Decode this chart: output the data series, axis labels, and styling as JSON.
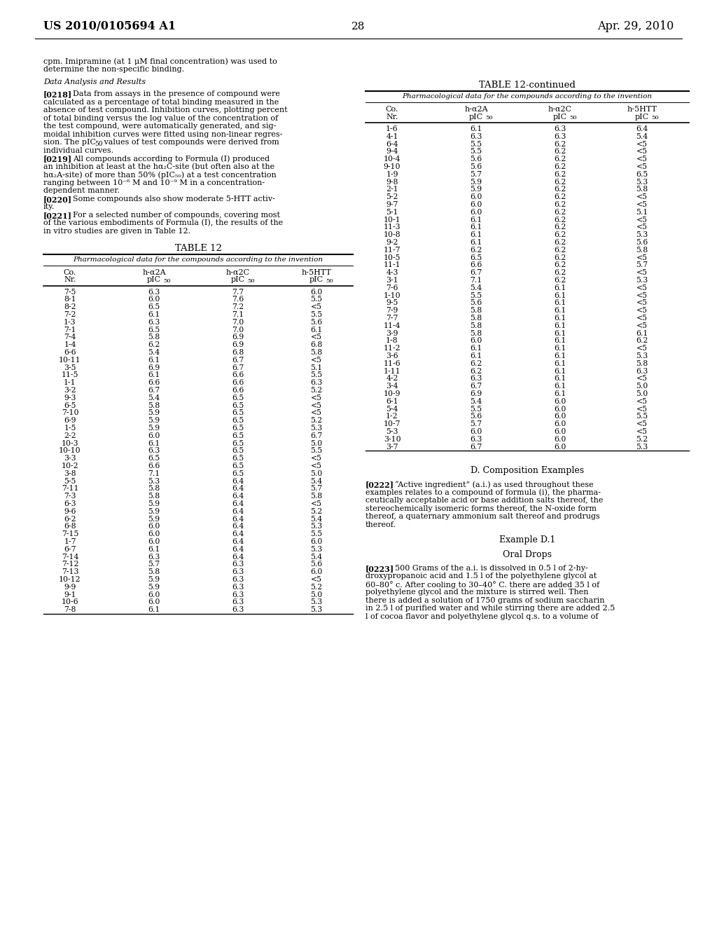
{
  "page_number": "28",
  "patent_left": "US 2010/0105694 A1",
  "patent_right": "Apr. 29, 2010",
  "table12_data": [
    [
      "7-5",
      "6.3",
      "7.7",
      "6.0"
    ],
    [
      "8-1",
      "6.0",
      "7.6",
      "5.5"
    ],
    [
      "8-2",
      "6.5",
      "7.2",
      "<5"
    ],
    [
      "7-2",
      "6.1",
      "7.1",
      "5.5"
    ],
    [
      "1-3",
      "6.3",
      "7.0",
      "5.6"
    ],
    [
      "7-1",
      "6.5",
      "7.0",
      "6.1"
    ],
    [
      "7-4",
      "5.8",
      "6.9",
      "<5"
    ],
    [
      "1-4",
      "6.2",
      "6.9",
      "6.8"
    ],
    [
      "6-6",
      "5.4",
      "6.8",
      "5.8"
    ],
    [
      "10-11",
      "6.1",
      "6.7",
      "<5"
    ],
    [
      "3-5",
      "6.9",
      "6.7",
      "5.1"
    ],
    [
      "11-5",
      "6.1",
      "6.6",
      "5.5"
    ],
    [
      "1-1",
      "6.6",
      "6.6",
      "6.3"
    ],
    [
      "3-2",
      "6.7",
      "6.6",
      "5.2"
    ],
    [
      "9-3",
      "5.4",
      "6.5",
      "<5"
    ],
    [
      "6-5",
      "5.8",
      "6.5",
      "<5"
    ],
    [
      "7-10",
      "5.9",
      "6.5",
      "<5"
    ],
    [
      "6-9",
      "5.9",
      "6.5",
      "5.2"
    ],
    [
      "1-5",
      "5.9",
      "6.5",
      "5.3"
    ],
    [
      "2-2",
      "6.0",
      "6.5",
      "6.7"
    ],
    [
      "10-3",
      "6.1",
      "6.5",
      "5.0"
    ],
    [
      "10-10",
      "6.3",
      "6.5",
      "5.5"
    ],
    [
      "3-3",
      "6.5",
      "6.5",
      "<5"
    ],
    [
      "10-2",
      "6.6",
      "6.5",
      "<5"
    ],
    [
      "3-8",
      "7.1",
      "6.5",
      "5.0"
    ],
    [
      "5-5",
      "5.3",
      "6.4",
      "5.4"
    ],
    [
      "7-11",
      "5.8",
      "6.4",
      "5.7"
    ],
    [
      "7-3",
      "5.8",
      "6.4",
      "5.8"
    ],
    [
      "6-3",
      "5.9",
      "6.4",
      "<5"
    ],
    [
      "9-6",
      "5.9",
      "6.4",
      "5.2"
    ],
    [
      "6-2",
      "5.9",
      "6.4",
      "5.4"
    ],
    [
      "6-8",
      "6.0",
      "6.4",
      "5.3"
    ],
    [
      "7-15",
      "6.0",
      "6.4",
      "5.5"
    ],
    [
      "1-7",
      "6.0",
      "6.4",
      "6.0"
    ],
    [
      "6-7",
      "6.1",
      "6.4",
      "5.3"
    ],
    [
      "7-14",
      "6.3",
      "6.4",
      "5.4"
    ],
    [
      "7-12",
      "5.7",
      "6.3",
      "5.6"
    ],
    [
      "7-13",
      "5.8",
      "6.3",
      "6.0"
    ],
    [
      "10-12",
      "5.9",
      "6.3",
      "<5"
    ],
    [
      "9-9",
      "5.9",
      "6.3",
      "5.2"
    ],
    [
      "9-1",
      "6.0",
      "6.3",
      "5.0"
    ],
    [
      "10-6",
      "6.0",
      "6.3",
      "5.3"
    ],
    [
      "7-8",
      "6.1",
      "6.3",
      "5.3"
    ]
  ],
  "table12cont_data": [
    [
      "1-6",
      "6.1",
      "6.3",
      "6.4"
    ],
    [
      "4-1",
      "6.3",
      "6.3",
      "5.4"
    ],
    [
      "6-4",
      "5.5",
      "6.2",
      "<5"
    ],
    [
      "9-4",
      "5.5",
      "6.2",
      "<5"
    ],
    [
      "10-4",
      "5.6",
      "6.2",
      "<5"
    ],
    [
      "9-10",
      "5.6",
      "6.2",
      "<5"
    ],
    [
      "1-9",
      "5.7",
      "6.2",
      "6.5"
    ],
    [
      "9-8",
      "5.9",
      "6.2",
      "5.3"
    ],
    [
      "2-1",
      "5.9",
      "6.2",
      "5.8"
    ],
    [
      "5-2",
      "6.0",
      "6.2",
      "<5"
    ],
    [
      "9-7",
      "6.0",
      "6.2",
      "<5"
    ],
    [
      "5-1",
      "6.0",
      "6.2",
      "5.1"
    ],
    [
      "10-1",
      "6.1",
      "6.2",
      "<5"
    ],
    [
      "11-3",
      "6.1",
      "6.2",
      "<5"
    ],
    [
      "10-8",
      "6.1",
      "6.2",
      "5.3"
    ],
    [
      "9-2",
      "6.1",
      "6.2",
      "5.6"
    ],
    [
      "11-7",
      "6.2",
      "6.2",
      "5.8"
    ],
    [
      "10-5",
      "6.5",
      "6.2",
      "<5"
    ],
    [
      "11-1",
      "6.6",
      "6.2",
      "5.7"
    ],
    [
      "4-3",
      "6.7",
      "6.2",
      "<5"
    ],
    [
      "3-1",
      "7.1",
      "6.2",
      "5.3"
    ],
    [
      "7-6",
      "5.4",
      "6.1",
      "<5"
    ],
    [
      "1-10",
      "5.5",
      "6.1",
      "<5"
    ],
    [
      "9-5",
      "5.6",
      "6.1",
      "<5"
    ],
    [
      "7-9",
      "5.8",
      "6.1",
      "<5"
    ],
    [
      "7-7",
      "5.8",
      "6.1",
      "<5"
    ],
    [
      "11-4",
      "5.8",
      "6.1",
      "<5"
    ],
    [
      "3-9",
      "5.8",
      "6.1",
      "6.1"
    ],
    [
      "1-8",
      "6.0",
      "6.1",
      "6.2"
    ],
    [
      "11-2",
      "6.1",
      "6.1",
      "<5"
    ],
    [
      "3-6",
      "6.1",
      "6.1",
      "5.3"
    ],
    [
      "11-6",
      "6.2",
      "6.1",
      "5.8"
    ],
    [
      "1-11",
      "6.2",
      "6.1",
      "6.3"
    ],
    [
      "4-2",
      "6.3",
      "6.1",
      "<5"
    ],
    [
      "3-4",
      "6.7",
      "6.1",
      "5.0"
    ],
    [
      "10-9",
      "6.9",
      "6.1",
      "5.0"
    ],
    [
      "6-1",
      "5.4",
      "6.0",
      "<5"
    ],
    [
      "5-4",
      "5.5",
      "6.0",
      "<5"
    ],
    [
      "1-2",
      "5.6",
      "6.0",
      "5.5"
    ],
    [
      "10-7",
      "5.7",
      "6.0",
      "<5"
    ],
    [
      "5-3",
      "6.0",
      "6.0",
      "<5"
    ],
    [
      "3-10",
      "6.3",
      "6.0",
      "5.2"
    ],
    [
      "3-7",
      "6.7",
      "6.0",
      "5.3"
    ]
  ]
}
